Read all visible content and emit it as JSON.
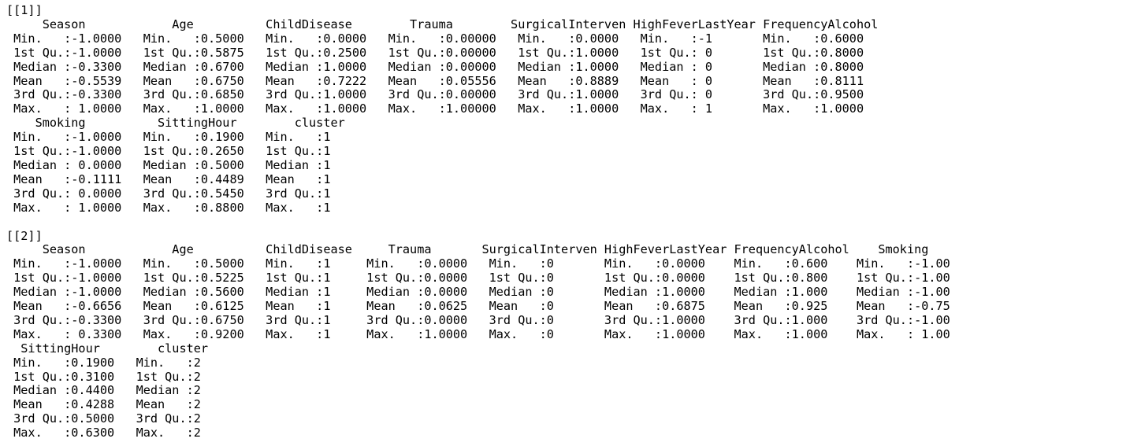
{
  "console": {
    "lines": [
      "[[1]]",
      "     Season            Age          ChildDisease        Trauma        SurgicalInterven HighFeverLastYear FrequencyAlcohol",
      " Min.   :-1.0000   Min.   :0.5000   Min.   :0.0000   Min.   :0.00000   Min.   :0.0000   Min.   :-1       Min.   :0.6000  ",
      " 1st Qu.:-1.0000   1st Qu.:0.5875   1st Qu.:0.2500   1st Qu.:0.00000   1st Qu.:1.0000   1st Qu.: 0       1st Qu.:0.8000  ",
      " Median :-0.3300   Median :0.6700   Median :1.0000   Median :0.00000   Median :1.0000   Median : 0       Median :0.8000  ",
      " Mean   :-0.5539   Mean   :0.6750   Mean   :0.7222   Mean   :0.05556   Mean   :0.8889   Mean   : 0       Mean   :0.8111  ",
      " 3rd Qu.:-0.3300   3rd Qu.:0.6850   3rd Qu.:1.0000   3rd Qu.:0.00000   3rd Qu.:1.0000   3rd Qu.: 0       3rd Qu.:0.9500  ",
      " Max.   : 1.0000   Max.   :1.0000   Max.   :1.0000   Max.   :1.00000   Max.   :1.0000   Max.   : 1       Max.   :1.0000  ",
      "    Smoking          SittingHour        cluster  ",
      " Min.   :-1.0000   Min.   :0.1900   Min.   :1  ",
      " 1st Qu.:-1.0000   1st Qu.:0.2650   1st Qu.:1  ",
      " Median : 0.0000   Median :0.5000   Median :1  ",
      " Mean   :-0.1111   Mean   :0.4489   Mean   :1  ",
      " 3rd Qu.: 0.0000   3rd Qu.:0.5450   3rd Qu.:1  ",
      " Max.   : 1.0000   Max.   :0.8800   Max.   :1  ",
      "",
      "[[2]]",
      "     Season            Age          ChildDisease     Trauma       SurgicalInterven HighFeverLastYear FrequencyAlcohol    Smoking    ",
      " Min.   :-1.0000   Min.   :0.5000   Min.   :1     Min.   :0.0000   Min.   :0       Min.   :0.0000    Min.   :0.600    Min.   :-1.00  ",
      " 1st Qu.:-1.0000   1st Qu.:0.5225   1st Qu.:1     1st Qu.:0.0000   1st Qu.:0       1st Qu.:0.0000    1st Qu.:0.800    1st Qu.:-1.00  ",
      " Median :-1.0000   Median :0.5600   Median :1     Median :0.0000   Median :0       Median :1.0000    Median :1.000    Median :-1.00  ",
      " Mean   :-0.6656   Mean   :0.6125   Mean   :1     Mean   :0.0625   Mean   :0       Mean   :0.6875    Mean   :0.925    Mean   :-0.75  ",
      " 3rd Qu.:-0.3300   3rd Qu.:0.6750   3rd Qu.:1     3rd Qu.:0.0000   3rd Qu.:0       3rd Qu.:1.0000    3rd Qu.:1.000    3rd Qu.:-1.00  ",
      " Max.   : 0.3300   Max.   :0.9200   Max.   :1     Max.   :1.0000   Max.   :0       Max.   :1.0000    Max.   :1.000    Max.   : 1.00  ",
      "  SittingHour        cluster  ",
      " Min.   :0.1900   Min.   :2   ",
      " 1st Qu.:0.3100   1st Qu.:2   ",
      " Median :0.4400   Median :2   ",
      " Mean   :0.4288   Mean   :2   ",
      " 3rd Qu.:0.5000   3rd Qu.:2   ",
      " Max.   :0.6300   Max.   :2   "
    ]
  }
}
